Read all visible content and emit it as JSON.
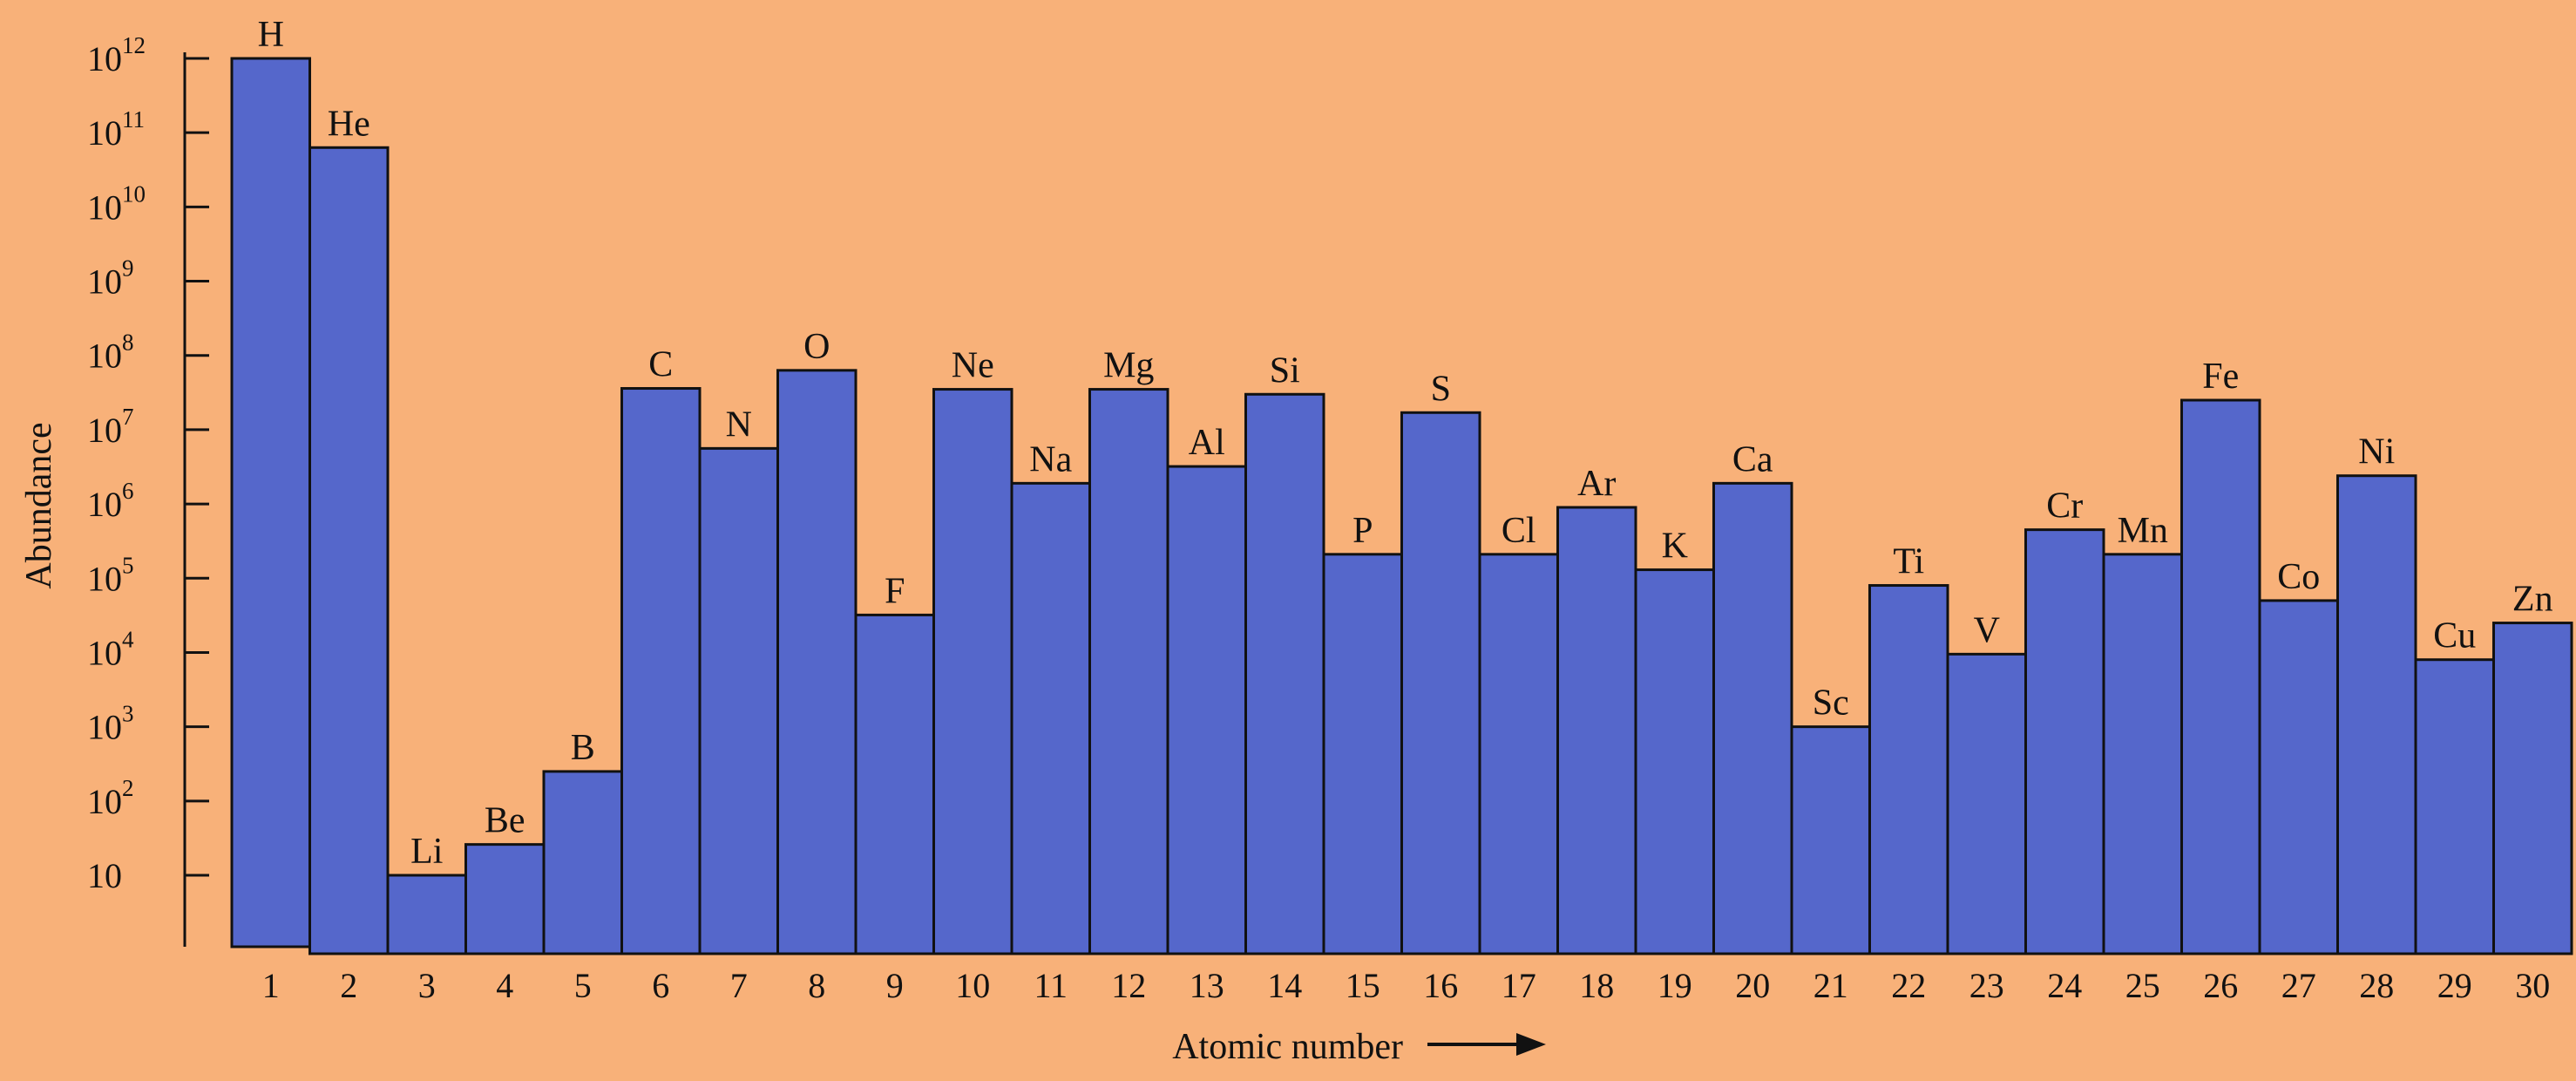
{
  "chart_data": {
    "type": "bar",
    "xlabel": "Atomic number",
    "ylabel": "Abundance",
    "yscale": "log",
    "ylim": [
      1,
      1000000000000
    ],
    "grid": false,
    "legend": "none",
    "colors": {
      "bar": "#5567cb",
      "background": "#f8b179",
      "stroke": "#111111"
    },
    "categories": [
      "1",
      "2",
      "3",
      "4",
      "5",
      "6",
      "7",
      "8",
      "9",
      "10",
      "11",
      "12",
      "13",
      "14",
      "15",
      "16",
      "17",
      "18",
      "19",
      "20",
      "21",
      "22",
      "23",
      "24",
      "25",
      "26",
      "27",
      "28",
      "29",
      "30"
    ],
    "labels": [
      "H",
      "He",
      "Li",
      "Be",
      "B",
      "C",
      "N",
      "O",
      "F",
      "Ne",
      "Na",
      "Mg",
      "Al",
      "Si",
      "P",
      "S",
      "Cl",
      "Ar",
      "K",
      "Ca",
      "Sc",
      "Ti",
      "V",
      "Cr",
      "Mn",
      "Fe",
      "Co",
      "Ni",
      "Cu",
      "Zn"
    ],
    "values": [
      1000000000000,
      63000000000,
      10,
      26,
      250,
      36000000,
      5600000,
      63000000,
      32000,
      35000000,
      1900000,
      35000000,
      3200000,
      30000000,
      210000,
      17000000,
      210000,
      900000,
      130000,
      1900000,
      1000,
      80000,
      9500,
      450000,
      210000,
      25000000,
      50000,
      2400000,
      8000,
      25000
    ],
    "yticks": [
      {
        "base": "10",
        "exp": "12"
      },
      {
        "base": "10",
        "exp": "11"
      },
      {
        "base": "10",
        "exp": "10"
      },
      {
        "base": "10",
        "exp": "9"
      },
      {
        "base": "10",
        "exp": "8"
      },
      {
        "base": "10",
        "exp": "7"
      },
      {
        "base": "10",
        "exp": "6"
      },
      {
        "base": "10",
        "exp": "5"
      },
      {
        "base": "10",
        "exp": "4"
      },
      {
        "base": "10",
        "exp": "3"
      },
      {
        "base": "10",
        "exp": "2"
      },
      {
        "base": "10",
        "exp": ""
      }
    ]
  }
}
